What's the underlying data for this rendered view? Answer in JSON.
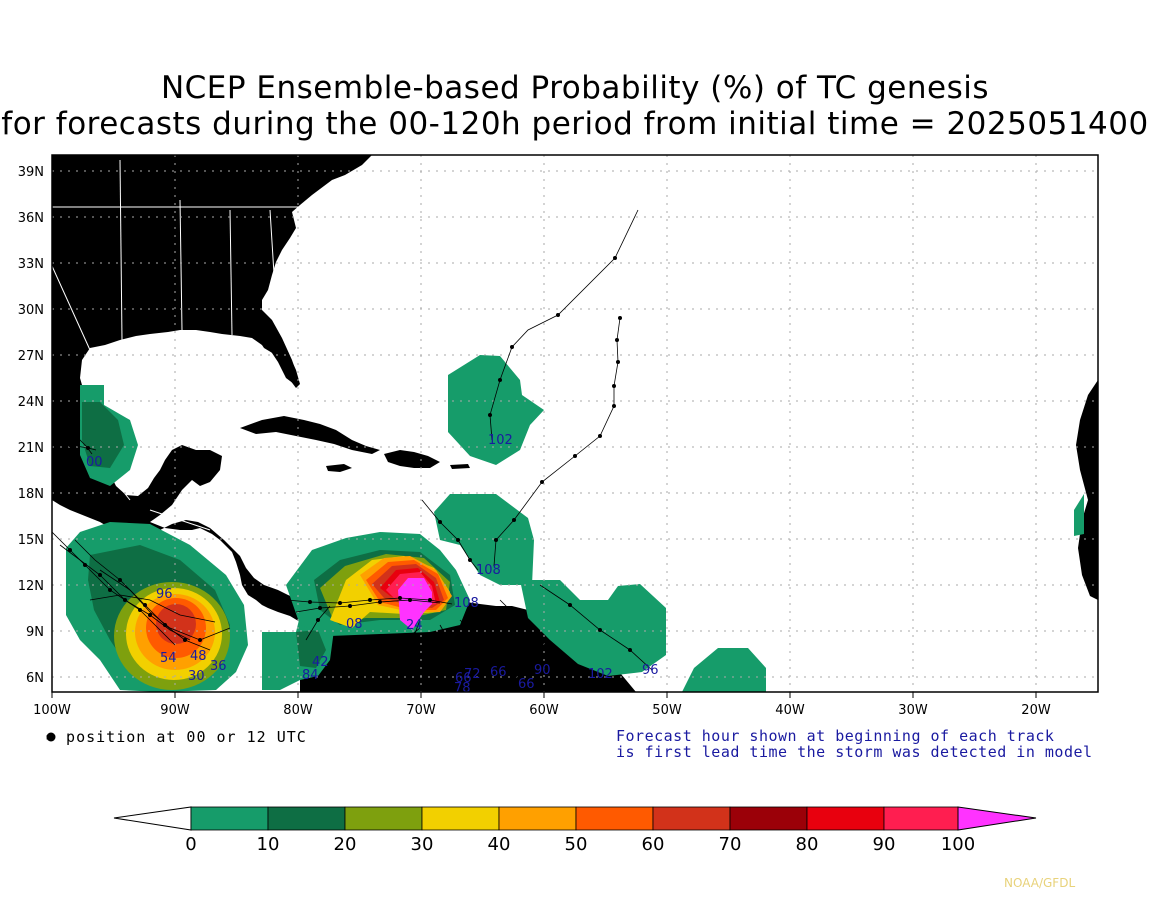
{
  "title": {
    "line1": "NCEP Ensemble-based Probability (%) of TC genesis",
    "line2": "for forecasts during the 00-120h period from initial time = 2025051400"
  },
  "map": {
    "lon_labels": [
      "100W",
      "90W",
      "80W",
      "70W",
      "60W",
      "50W",
      "40W",
      "30W",
      "20W"
    ],
    "lat_labels": [
      "6N",
      "9N",
      "12N",
      "15N",
      "18N",
      "21N",
      "24N",
      "27N",
      "30N",
      "33N",
      "36N",
      "39N"
    ],
    "lon_range": [
      -100,
      -15
    ],
    "lat_range": [
      5,
      40
    ],
    "colors": {
      "land": "#9a9a9a",
      "ocean": "#ffffff",
      "track": "#000000",
      "track_label": "#1a1aa0"
    },
    "genesis_regions": [
      {
        "name": "gulf-of-mexico-west",
        "peak_percent": 20
      },
      {
        "name": "eastern-pacific-gulf-tehuantepec",
        "peak_percent": 70
      },
      {
        "name": "panama-colombia",
        "peak_percent": 20
      },
      {
        "name": "caribbean-venezuela",
        "peak_percent": 100
      },
      {
        "name": "east-caribbean",
        "peak_percent": 10
      },
      {
        "name": "central-atlantic-24n",
        "peak_percent": 10
      },
      {
        "name": "tropical-atlantic-11n",
        "peak_percent": 10
      },
      {
        "name": "tropical-atlantic-6n",
        "peak_percent": 10
      }
    ],
    "track_labels": [
      "102",
      "108",
      "108",
      "66",
      "90",
      "66",
      "102",
      "96",
      "72",
      "66",
      "78",
      "84",
      "42",
      "08",
      "96",
      "36",
      "30",
      "54",
      "48",
      "24",
      "00"
    ]
  },
  "notes": {
    "left": "= position at 00 or 12 UTC",
    "right_line1": "Forecast hour shown at beginning of each track",
    "right_line2": "is first lead time the storm was detected in model"
  },
  "colorbar": {
    "ticks": [
      "0",
      "10",
      "20",
      "30",
      "40",
      "50",
      "60",
      "70",
      "80",
      "90",
      "100"
    ],
    "colors": [
      "#169c6a",
      "#0e6e44",
      "#7ea00e",
      "#f2d000",
      "#ffa000",
      "#ff5a00",
      "#d2321a",
      "#9b0008",
      "#e8000e",
      "#ff1e50",
      "#ff33ff"
    ]
  },
  "credit": "NOAA/GFDL"
}
